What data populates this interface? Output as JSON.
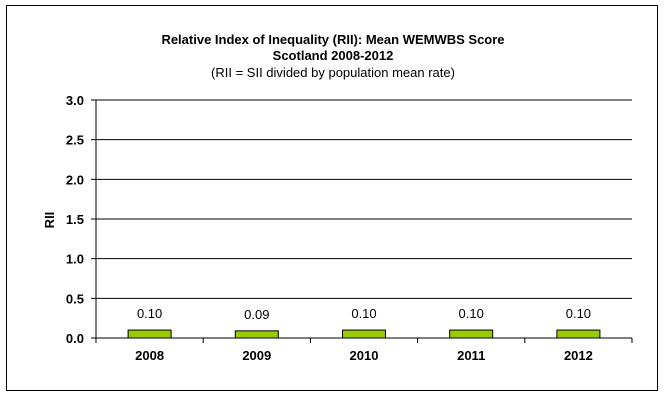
{
  "chart_data": {
    "type": "bar",
    "title_line1": "Relative Index of Inequality (RII):  Mean WEMWBS Score",
    "title_line2": "Scotland 2008-2012",
    "subtitle": "(RII = SII divided by population mean rate)",
    "xlabel": "",
    "ylabel": "RII",
    "categories": [
      "2008",
      "2009",
      "2010",
      "2011",
      "2012"
    ],
    "values": [
      0.1,
      0.09,
      0.1,
      0.1,
      0.1
    ],
    "data_labels": [
      "0.10",
      "0.09",
      "0.10",
      "0.10",
      "0.10"
    ],
    "ylim": [
      0,
      3.0
    ],
    "yticks": [
      "0.0",
      "0.5",
      "1.0",
      "1.5",
      "2.0",
      "2.5",
      "3.0"
    ],
    "grid": true,
    "legend": "none",
    "bar_color": "#99cc00"
  }
}
